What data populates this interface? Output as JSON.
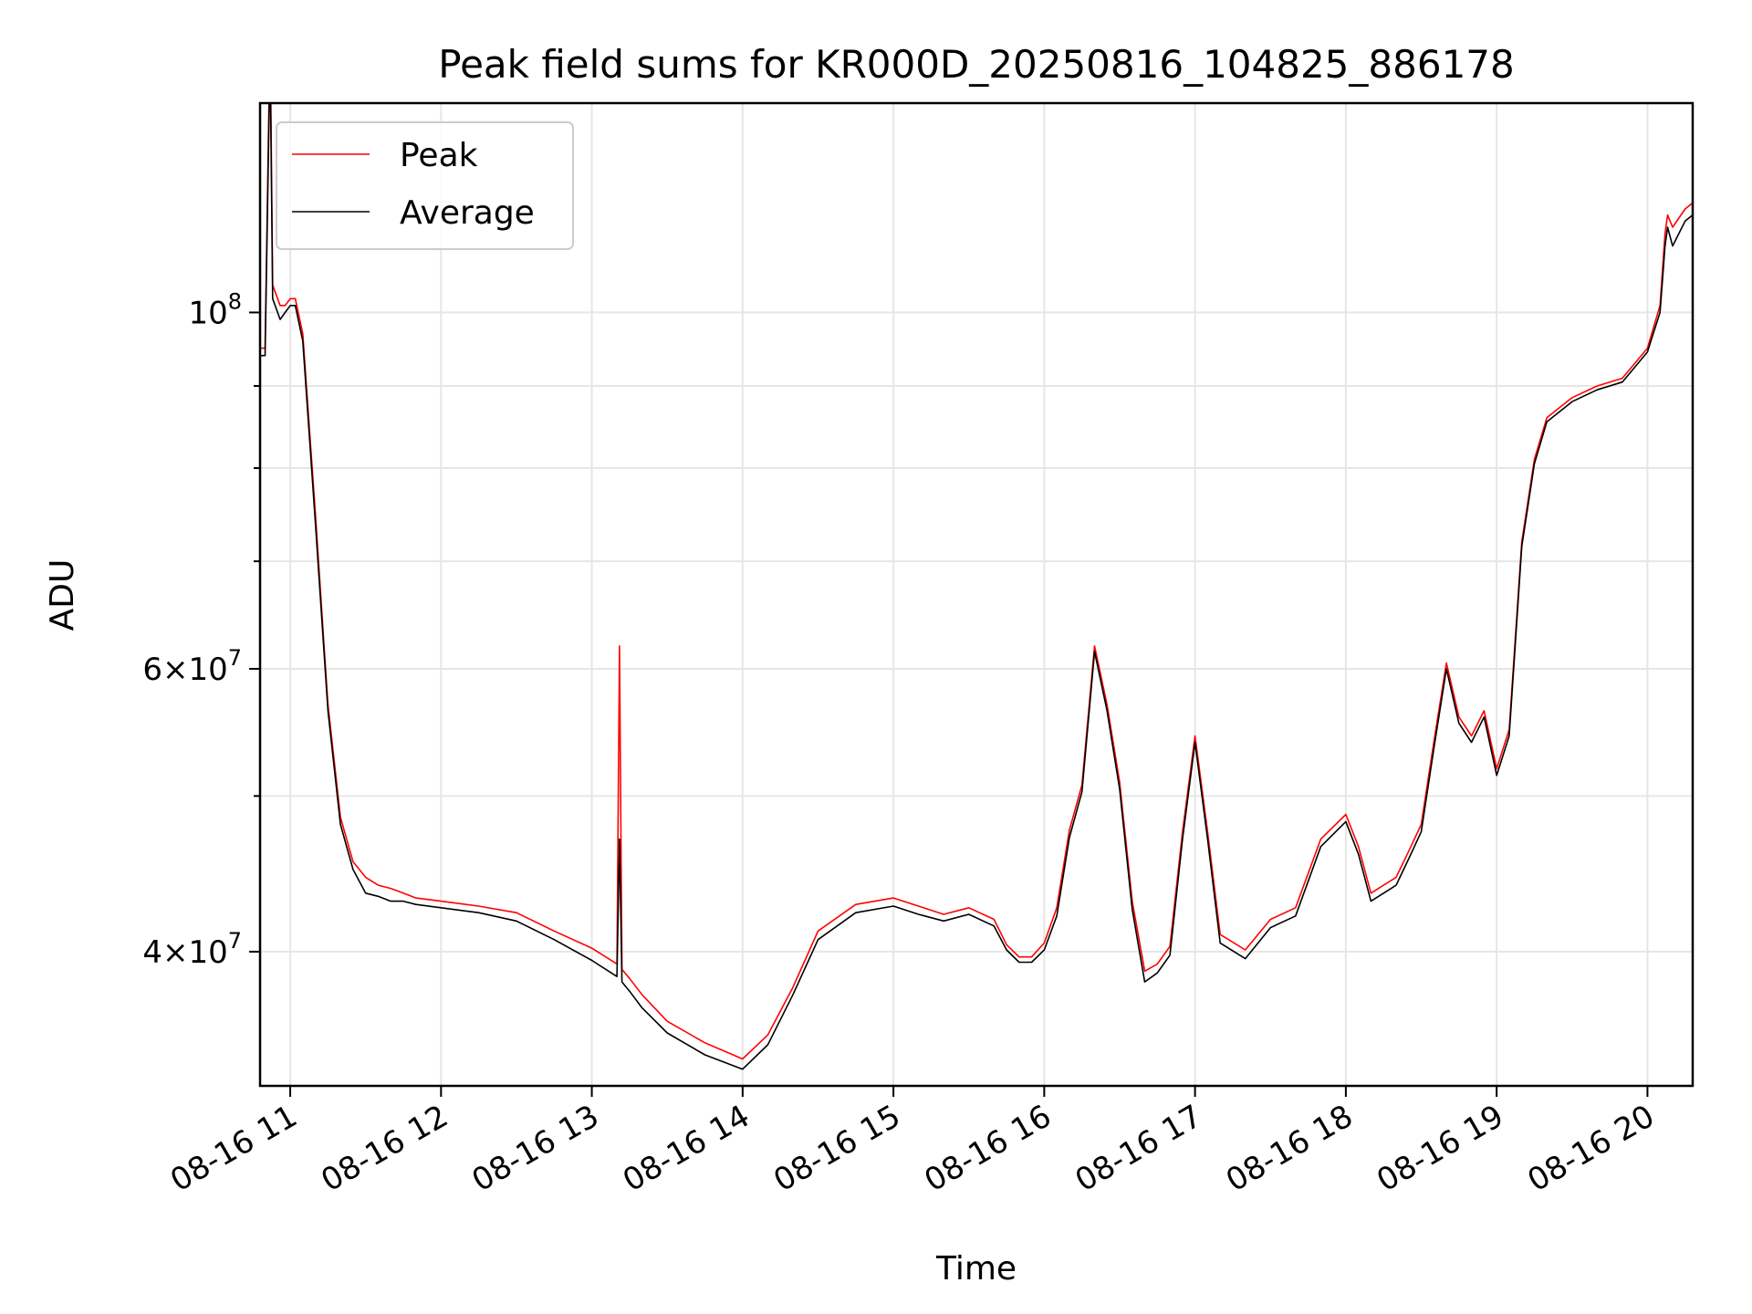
{
  "chart_data": {
    "type": "line",
    "title": "Peak field sums for KR000D_20250816_104825_886178",
    "xlabel": "Time",
    "ylabel": "ADU",
    "y_scale": "log",
    "ylim": [
      33000000,
      135000000
    ],
    "xlim": [
      "2025-08-16 10:48",
      "2025-08-16 20:18"
    ],
    "grid": true,
    "legend_position": "upper left",
    "x_ticks": [
      {
        "t": "2025-08-16 11:00",
        "label": "08-16 11"
      },
      {
        "t": "2025-08-16 12:00",
        "label": "08-16 12"
      },
      {
        "t": "2025-08-16 13:00",
        "label": "08-16 13"
      },
      {
        "t": "2025-08-16 14:00",
        "label": "08-16 14"
      },
      {
        "t": "2025-08-16 15:00",
        "label": "08-16 15"
      },
      {
        "t": "2025-08-16 16:00",
        "label": "08-16 16"
      },
      {
        "t": "2025-08-16 17:00",
        "label": "08-16 17"
      },
      {
        "t": "2025-08-16 18:00",
        "label": "08-16 18"
      },
      {
        "t": "2025-08-16 19:00",
        "label": "08-16 19"
      },
      {
        "t": "2025-08-16 20:00",
        "label": "08-16 20"
      }
    ],
    "y_major_ticks": [
      {
        "value": 40000000,
        "base": "4×10",
        "exp": "7"
      },
      {
        "value": 60000000,
        "base": "6×10",
        "exp": "7"
      },
      {
        "value": 100000000,
        "base": "10",
        "exp": "8"
      }
    ],
    "y_minor_ticks": [
      50000000,
      70000000,
      80000000,
      90000000
    ],
    "series": [
      {
        "name": "Peak",
        "color": "#ff0000",
        "x": [
          "2025-08-16 10:48",
          "2025-08-16 10:50",
          "2025-08-16 10:52",
          "2025-08-16 10:53",
          "2025-08-16 10:54",
          "2025-08-16 10:56",
          "2025-08-16 10:58",
          "2025-08-16 11:00",
          "2025-08-16 11:02",
          "2025-08-16 11:05",
          "2025-08-16 11:10",
          "2025-08-16 11:15",
          "2025-08-16 11:20",
          "2025-08-16 11:25",
          "2025-08-16 11:30",
          "2025-08-16 11:35",
          "2025-08-16 11:40",
          "2025-08-16 11:45",
          "2025-08-16 11:50",
          "2025-08-16 12:00",
          "2025-08-16 12:15",
          "2025-08-16 12:30",
          "2025-08-16 12:45",
          "2025-08-16 13:00",
          "2025-08-16 13:10",
          "2025-08-16 13:11",
          "2025-08-16 13:12",
          "2025-08-16 13:15",
          "2025-08-16 13:20",
          "2025-08-16 13:30",
          "2025-08-16 13:45",
          "2025-08-16 14:00",
          "2025-08-16 14:10",
          "2025-08-16 14:20",
          "2025-08-16 14:30",
          "2025-08-16 14:45",
          "2025-08-16 15:00",
          "2025-08-16 15:10",
          "2025-08-16 15:20",
          "2025-08-16 15:30",
          "2025-08-16 15:40",
          "2025-08-16 15:45",
          "2025-08-16 15:50",
          "2025-08-16 15:55",
          "2025-08-16 16:00",
          "2025-08-16 16:05",
          "2025-08-16 16:10",
          "2025-08-16 16:15",
          "2025-08-16 16:20",
          "2025-08-16 16:25",
          "2025-08-16 16:30",
          "2025-08-16 16:35",
          "2025-08-16 16:40",
          "2025-08-16 16:45",
          "2025-08-16 16:50",
          "2025-08-16 16:55",
          "2025-08-16 17:00",
          "2025-08-16 17:05",
          "2025-08-16 17:10",
          "2025-08-16 17:20",
          "2025-08-16 17:30",
          "2025-08-16 17:40",
          "2025-08-16 17:50",
          "2025-08-16 18:00",
          "2025-08-16 18:05",
          "2025-08-16 18:10",
          "2025-08-16 18:20",
          "2025-08-16 18:25",
          "2025-08-16 18:30",
          "2025-08-16 18:35",
          "2025-08-16 18:40",
          "2025-08-16 18:45",
          "2025-08-16 18:50",
          "2025-08-16 18:55",
          "2025-08-16 19:00",
          "2025-08-16 19:05",
          "2025-08-16 19:10",
          "2025-08-16 19:15",
          "2025-08-16 19:20",
          "2025-08-16 19:30",
          "2025-08-16 19:40",
          "2025-08-16 19:50",
          "2025-08-16 20:00",
          "2025-08-16 20:05",
          "2025-08-16 20:07",
          "2025-08-16 20:08",
          "2025-08-16 20:10",
          "2025-08-16 20:15",
          "2025-08-16 20:18"
        ],
        "y": [
          95000000,
          95000000,
          150000000,
          104000000,
          103000000,
          101000000,
          101000000,
          102000000,
          102000000,
          97000000,
          75000000,
          57000000,
          48500000,
          45500000,
          44500000,
          44000000,
          43800000,
          43500000,
          43200000,
          43000000,
          42700000,
          42300000,
          41200000,
          40200000,
          39300000,
          62000000,
          39000000,
          38500000,
          37600000,
          36200000,
          35100000,
          34300000,
          35500000,
          38000000,
          41200000,
          42800000,
          43200000,
          42700000,
          42200000,
          42600000,
          41900000,
          40400000,
          39700000,
          39700000,
          40500000,
          42600000,
          47600000,
          50800000,
          62000000,
          57000000,
          51000000,
          43000000,
          38900000,
          39300000,
          40300000,
          47500000,
          54500000,
          47500000,
          41000000,
          40100000,
          41900000,
          42600000,
          47000000,
          48700000,
          46500000,
          43500000,
          44500000,
          46200000,
          48000000,
          54000000,
          60500000,
          56000000,
          54500000,
          56500000,
          52000000,
          55000000,
          72000000,
          81000000,
          86000000,
          88500000,
          90000000,
          91000000,
          95000000,
          101000000,
          112000000,
          115000000,
          113000000,
          116000000,
          117000000
        ]
      },
      {
        "name": "Average",
        "color": "#000000",
        "x": [
          "2025-08-16 10:48",
          "2025-08-16 10:50",
          "2025-08-16 10:52",
          "2025-08-16 10:53",
          "2025-08-16 10:54",
          "2025-08-16 10:56",
          "2025-08-16 10:58",
          "2025-08-16 11:00",
          "2025-08-16 11:02",
          "2025-08-16 11:05",
          "2025-08-16 11:10",
          "2025-08-16 11:15",
          "2025-08-16 11:20",
          "2025-08-16 11:25",
          "2025-08-16 11:30",
          "2025-08-16 11:35",
          "2025-08-16 11:40",
          "2025-08-16 11:45",
          "2025-08-16 11:50",
          "2025-08-16 12:00",
          "2025-08-16 12:15",
          "2025-08-16 12:30",
          "2025-08-16 12:45",
          "2025-08-16 13:00",
          "2025-08-16 13:10",
          "2025-08-16 13:11",
          "2025-08-16 13:12",
          "2025-08-16 13:15",
          "2025-08-16 13:20",
          "2025-08-16 13:30",
          "2025-08-16 13:45",
          "2025-08-16 14:00",
          "2025-08-16 14:10",
          "2025-08-16 14:20",
          "2025-08-16 14:30",
          "2025-08-16 14:45",
          "2025-08-16 15:00",
          "2025-08-16 15:10",
          "2025-08-16 15:20",
          "2025-08-16 15:30",
          "2025-08-16 15:40",
          "2025-08-16 15:45",
          "2025-08-16 15:50",
          "2025-08-16 15:55",
          "2025-08-16 16:00",
          "2025-08-16 16:05",
          "2025-08-16 16:10",
          "2025-08-16 16:15",
          "2025-08-16 16:20",
          "2025-08-16 16:25",
          "2025-08-16 16:30",
          "2025-08-16 16:35",
          "2025-08-16 16:40",
          "2025-08-16 16:45",
          "2025-08-16 16:50",
          "2025-08-16 16:55",
          "2025-08-16 17:00",
          "2025-08-16 17:05",
          "2025-08-16 17:10",
          "2025-08-16 17:20",
          "2025-08-16 17:30",
          "2025-08-16 17:40",
          "2025-08-16 17:50",
          "2025-08-16 18:00",
          "2025-08-16 18:05",
          "2025-08-16 18:10",
          "2025-08-16 18:20",
          "2025-08-16 18:25",
          "2025-08-16 18:30",
          "2025-08-16 18:35",
          "2025-08-16 18:40",
          "2025-08-16 18:45",
          "2025-08-16 18:50",
          "2025-08-16 18:55",
          "2025-08-16 19:00",
          "2025-08-16 19:05",
          "2025-08-16 19:10",
          "2025-08-16 19:15",
          "2025-08-16 19:20",
          "2025-08-16 19:30",
          "2025-08-16 19:40",
          "2025-08-16 19:50",
          "2025-08-16 20:00",
          "2025-08-16 20:05",
          "2025-08-16 20:07",
          "2025-08-16 20:08",
          "2025-08-16 20:10",
          "2025-08-16 20:15",
          "2025-08-16 20:18"
        ],
        "y": [
          94000000,
          94000000,
          145000000,
          102000000,
          101000000,
          99000000,
          100000000,
          101000000,
          101000000,
          96000000,
          74000000,
          56500000,
          48000000,
          45000000,
          43500000,
          43300000,
          43000000,
          43000000,
          42800000,
          42600000,
          42300000,
          41800000,
          40700000,
          39500000,
          38600000,
          47000000,
          38300000,
          37800000,
          36900000,
          35600000,
          34500000,
          33800000,
          35000000,
          37600000,
          40700000,
          42300000,
          42700000,
          42200000,
          41800000,
          42200000,
          41500000,
          40100000,
          39400000,
          39400000,
          40100000,
          42100000,
          47100000,
          50300000,
          61500000,
          56500000,
          50500000,
          42500000,
          38300000,
          38800000,
          39800000,
          47000000,
          54000000,
          47000000,
          40500000,
          39600000,
          41400000,
          42100000,
          46500000,
          48200000,
          46000000,
          43000000,
          44000000,
          45700000,
          47500000,
          53500000,
          60000000,
          55500000,
          54000000,
          56000000,
          51500000,
          54500000,
          71500000,
          80500000,
          85500000,
          88000000,
          89500000,
          90500000,
          94500000,
          100000000,
          110000000,
          113000000,
          110000000,
          114000000,
          115000000
        ]
      }
    ]
  }
}
